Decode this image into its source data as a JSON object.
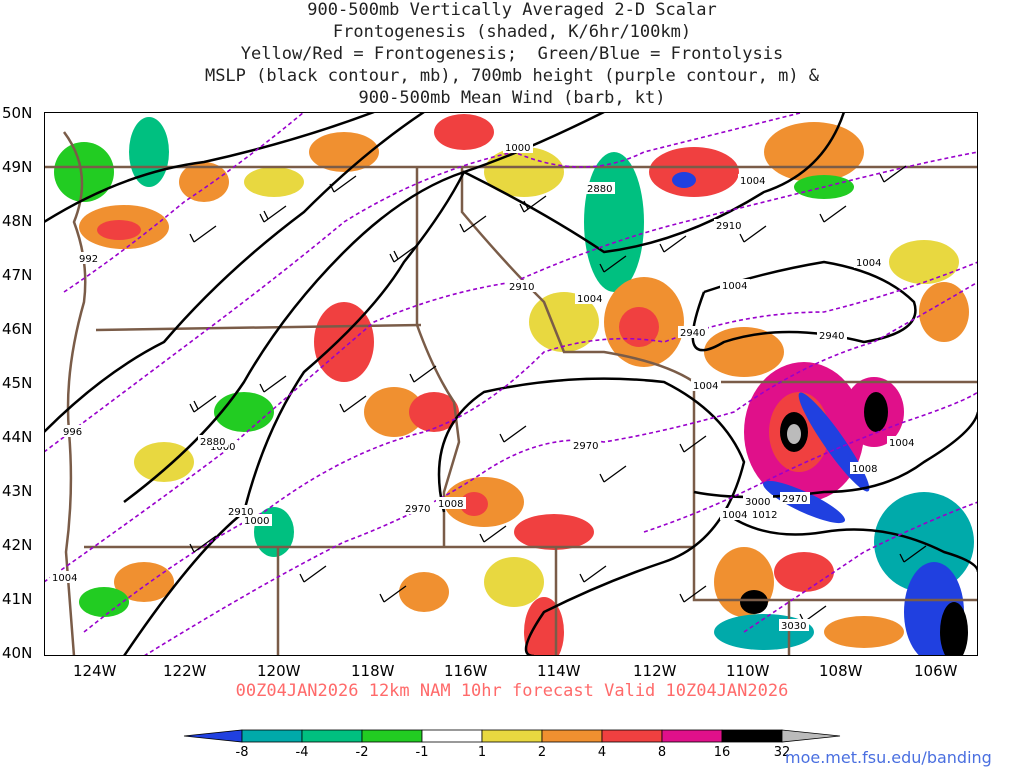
{
  "title": {
    "lines": [
      "900-500mb Vertically Averaged 2-D Scalar",
      "Frontogenesis (shaded, K/6hr/100km)",
      "Yellow/Red = Frontogenesis;  Green/Blue = Frontolysis",
      "MSLP (black contour, mb), 700mb height (purple contour, m) &",
      "900-500mb Mean Wind (barb, kt)"
    ]
  },
  "axes": {
    "lat_labels": [
      "50N",
      "49N",
      "48N",
      "47N",
      "46N",
      "45N",
      "44N",
      "43N",
      "42N",
      "41N",
      "40N"
    ],
    "lon_labels": [
      "124W",
      "122W",
      "120W",
      "118W",
      "116W",
      "114W",
      "112W",
      "110W",
      "108W",
      "106W"
    ]
  },
  "footer": {
    "valid_text": "00Z04JAN2026 12km NAM 10hr forecast Valid 10Z04JAN2026"
  },
  "colorbar": {
    "labels": [
      "-8",
      "-4",
      "-2",
      "-1",
      "1",
      "2",
      "4",
      "8",
      "16",
      "32"
    ],
    "colors": [
      "#2040e0",
      "#00aaaa",
      "#00c080",
      "#22cc22",
      "#ffffff",
      "#e8d840",
      "#f09030",
      "#f04040",
      "#e0108a",
      "#000000",
      "#bbbbbb"
    ]
  },
  "contour_labels": {
    "mslp": [
      "1000",
      "992",
      "1004",
      "1000",
      "1004",
      "1004",
      "1004",
      "1008",
      "1004",
      "1008",
      "1004",
      "1012",
      "996",
      "1000",
      "1004",
      "1004"
    ],
    "height_700": [
      "2880",
      "2910",
      "2910",
      "2940",
      "2940",
      "2970",
      "2880",
      "2910",
      "2970",
      "3000",
      "2970",
      "3030"
    ]
  },
  "colors": {
    "mslp_contour": "#000000",
    "height_contour": "#9900cc",
    "state_border": "#7a5c48",
    "footer_text": "#ff6a6a",
    "credit_text": "#4a6fe0"
  },
  "credit": "moe.met.fsu.edu/banding"
}
